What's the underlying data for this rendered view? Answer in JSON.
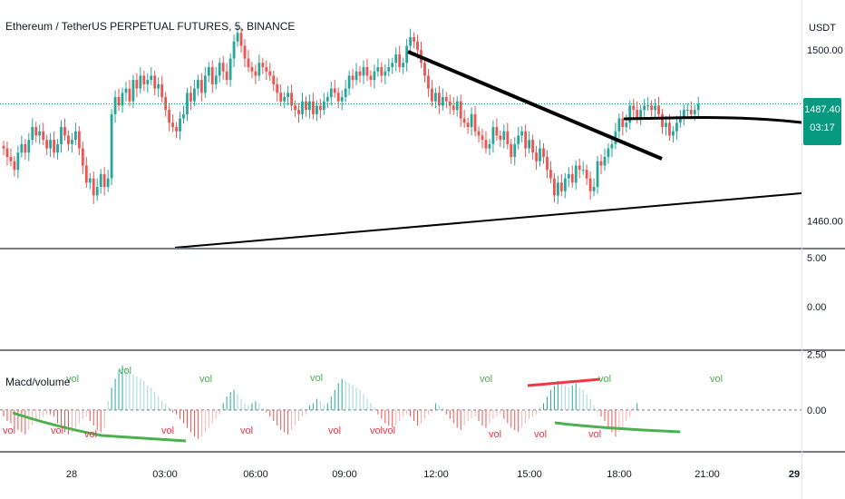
{
  "header": {
    "title": "Ethereum / TetherUS PERPETUAL FUTURES, 5, BINANCE",
    "currency": "USDT"
  },
  "last_price": {
    "value": "1487.40",
    "countdown": "03:17"
  },
  "indicator": {
    "title": "Macd/volume",
    "label_vol": "vol",
    "label_volvol": "volvol"
  },
  "colors": {
    "bull": "#26a69a",
    "bear": "#ef5350",
    "hist_up": "#26a69a",
    "hist_down": "#ef5350",
    "price_line": "#089981",
    "trend": "#000000",
    "div_bear": "#f23645",
    "div_bull": "#4caf50",
    "vol_green": "#4caf50",
    "vol_red": "#f23645",
    "separator": "#787b86"
  },
  "chart_data": [
    {
      "type": "candlestick",
      "title": "Ethereum / TetherUS PERPETUAL FUTURES, 5, BINANCE",
      "y_axis_label": "USDT",
      "ylim": [
        1454,
        1510
      ],
      "y_ticks": [
        {
          "value": 1500,
          "label": "1500.00"
        },
        {
          "value": 1460,
          "label": "1460.00"
        }
      ],
      "x_ticks": [
        "28",
        "03:00",
        "06:00",
        "09:00",
        "12:00",
        "15:00",
        "18:00",
        "21:00",
        "29"
      ],
      "current_price": 1487.4,
      "close_series": [
        1477,
        1475,
        1474,
        1472,
        1476,
        1478,
        1476,
        1479,
        1482,
        1480,
        1481,
        1479,
        1477,
        1479,
        1476,
        1478,
        1482,
        1480,
        1478,
        1479,
        1481,
        1477,
        1473,
        1469,
        1470,
        1466,
        1468,
        1471,
        1468,
        1470,
        1485,
        1489,
        1487,
        1490,
        1491,
        1488,
        1493,
        1491,
        1494,
        1492,
        1493,
        1494,
        1491,
        1492,
        1489,
        1486,
        1483,
        1482,
        1481,
        1484,
        1485,
        1490,
        1488,
        1491,
        1493,
        1490,
        1494,
        1496,
        1492,
        1494,
        1497,
        1495,
        1493,
        1498,
        1502,
        1504,
        1501,
        1498,
        1496,
        1495,
        1494,
        1497,
        1496,
        1495,
        1494,
        1492,
        1490,
        1488,
        1489,
        1490,
        1487,
        1486,
        1485,
        1488,
        1486,
        1488,
        1485,
        1487,
        1486,
        1488,
        1489,
        1491,
        1490,
        1488,
        1489,
        1491,
        1494,
        1493,
        1495,
        1494,
        1496,
        1494,
        1493,
        1495,
        1496,
        1494,
        1495,
        1496,
        1497,
        1499,
        1496,
        1497,
        1501,
        1503,
        1502,
        1500,
        1497,
        1494,
        1491,
        1488,
        1490,
        1487,
        1489,
        1488,
        1487,
        1486,
        1488,
        1484,
        1483,
        1482,
        1485,
        1481,
        1480,
        1479,
        1477,
        1478,
        1482,
        1480,
        1479,
        1481,
        1478,
        1475,
        1478,
        1480,
        1481,
        1477,
        1479,
        1476,
        1474,
        1477,
        1475,
        1472,
        1470,
        1466,
        1469,
        1467,
        1470,
        1471,
        1469,
        1473,
        1472,
        1472,
        1470,
        1467,
        1468,
        1474,
        1473,
        1475,
        1477,
        1478,
        1481,
        1484,
        1482,
        1483,
        1487,
        1486,
        1484,
        1486,
        1487,
        1487,
        1486,
        1487,
        1485,
        1482,
        1483,
        1480,
        1481,
        1483,
        1484,
        1486,
        1486,
        1485,
        1486,
        1487.4
      ]
    },
    {
      "type": "bar",
      "title": "Macd/volume",
      "ylim": [
        -1.8,
        2.6
      ],
      "y_ticks": [
        {
          "value": 2.5,
          "label": "2.50"
        },
        {
          "value": 0,
          "label": "0.00"
        }
      ],
      "values": [
        -0.3,
        -0.5,
        -0.6,
        -0.8,
        -0.9,
        -1.0,
        -1.1,
        -0.9,
        -0.7,
        -0.5,
        -0.4,
        -0.3,
        -0.2,
        -0.2,
        -0.3,
        -0.6,
        -0.8,
        -1.0,
        -1.1,
        -1.0,
        -0.8,
        -0.6,
        -0.4,
        -0.3,
        -0.5,
        -0.7,
        -0.9,
        -1.0,
        -0.8,
        0.4,
        1.0,
        1.4,
        1.8,
        2.0,
        1.9,
        1.7,
        1.6,
        1.5,
        1.4,
        1.3,
        1.1,
        1.0,
        0.8,
        0.6,
        0.4,
        0.3,
        0.1,
        -0.1,
        -0.2,
        -0.4,
        -0.6,
        -0.8,
        -1.0,
        -1.2,
        -1.3,
        -1.2,
        -1.0,
        -0.8,
        -0.6,
        -0.4,
        -0.2,
        0.3,
        0.6,
        0.8,
        0.9,
        0.7,
        0.5,
        0.3,
        0.2,
        0.3,
        0.4,
        0.3,
        0.1,
        -0.1,
        -0.3,
        -0.5,
        -0.7,
        -0.9,
        -1.0,
        -1.1,
        -0.9,
        -0.7,
        -0.5,
        -0.3,
        -0.2,
        0.2,
        0.3,
        0.5,
        0.4,
        0.2,
        0.3,
        0.6,
        0.9,
        1.2,
        1.4,
        1.3,
        1.2,
        1.1,
        1.0,
        0.9,
        0.7,
        0.5,
        0.3,
        0.1,
        -0.2,
        -0.4,
        -0.6,
        -0.7,
        -0.8,
        -0.7,
        -0.5,
        -0.3,
        -0.2,
        -0.3,
        -0.5,
        -0.7,
        -0.6,
        -0.4,
        -0.2,
        -0.1,
        0.3,
        0.2,
        0.1,
        -0.2,
        -0.4,
        -0.6,
        -0.8,
        -0.9,
        -0.7,
        -0.5,
        -0.4,
        -0.3,
        -0.5,
        -0.7,
        -0.8,
        -0.6,
        -0.4,
        -0.3,
        -0.2,
        -0.4,
        -0.6,
        -0.8,
        -0.9,
        -1.0,
        -0.8,
        -0.6,
        -0.4,
        -0.3,
        -0.2,
        0.1,
        0.3,
        0.6,
        0.9,
        1.1,
        1.3,
        1.2,
        1.1,
        1.0,
        1.1,
        1.2,
        1.0,
        0.9,
        0.7,
        0.5,
        0.2,
        -0.1,
        -0.3,
        -0.5,
        -0.8,
        -1.0,
        -1.2,
        -1.0,
        -0.8,
        -0.5,
        -0.3,
        0.1,
        0.3
      ]
    }
  ],
  "third_pane": {
    "y_ticks": [
      {
        "value": 5,
        "label": "5.00"
      },
      {
        "value": 0,
        "label": "0.00"
      }
    ]
  }
}
